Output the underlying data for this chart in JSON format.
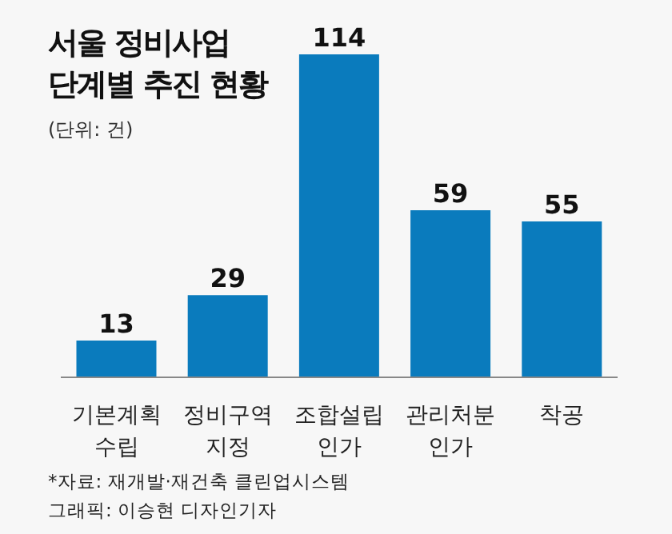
{
  "chart_data": {
    "type": "bar",
    "title": "서울 정비사업\n단계별 추진 현황",
    "subtitle": "(단위: 건)",
    "categories": [
      "기본계획\n수립",
      "정비구역\n지정",
      "조합설립\n인가",
      "관리처분\n인가",
      "착공"
    ],
    "values": [
      13,
      29,
      114,
      59,
      55
    ],
    "color": "#0a7bbd",
    "data_labels": true,
    "grid": false,
    "legend": false,
    "annotations": [
      "*자료: 재개발·재건축 클린업시스템",
      "그래픽: 이승현 디자인기자"
    ]
  }
}
